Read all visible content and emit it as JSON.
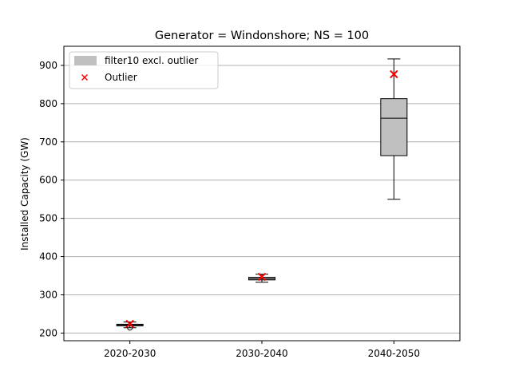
{
  "chart_data": {
    "type": "box",
    "title": "Generator = Windonshore; NS = 100",
    "xlabel": "",
    "ylabel": "Installed Capacity (GW)",
    "ylim": [
      180,
      950
    ],
    "yticks": [
      200,
      300,
      400,
      500,
      600,
      700,
      800,
      900
    ],
    "grid": "y",
    "legend": {
      "placement": "top-left",
      "entries": [
        {
          "label": "filter10 excl. outlier",
          "kind": "patch",
          "color": "#c0c0c0"
        },
        {
          "label": "Outlier",
          "kind": "marker",
          "marker": "x",
          "color": "#ff0000"
        }
      ]
    },
    "categories": [
      "2020-2030",
      "2030-2040",
      "2040-2050"
    ],
    "series": [
      {
        "name": "filter10 excl. outlier",
        "boxes": [
          {
            "whislo": 214,
            "q1": 219,
            "med": 221,
            "q3": 223,
            "whishi": 229,
            "fliers": [
              214
            ]
          },
          {
            "whislo": 333,
            "q1": 339,
            "med": 342,
            "q3": 346,
            "whishi": 354,
            "fliers": []
          },
          {
            "whislo": 550,
            "q1": 664,
            "med": 762,
            "q3": 813,
            "whishi": 917,
            "fliers": []
          }
        ]
      },
      {
        "name": "Outlier",
        "values": [
          224,
          347,
          877
        ]
      }
    ],
    "colors": {
      "box_fill": "#c0c0c0",
      "outlier": "#ff0000",
      "grid": "#b0b0b0"
    }
  }
}
